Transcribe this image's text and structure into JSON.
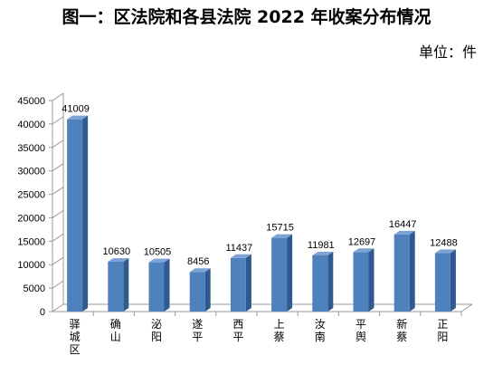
{
  "chart_data": {
    "type": "bar",
    "title": "图一：区法院和各县法院 2022 年收案分布情况",
    "unit_label": "单位：件",
    "categories": [
      "驿城区",
      "确山",
      "泌阳",
      "遂平",
      "西平",
      "上蔡",
      "汝南",
      "平舆",
      "新蔡",
      "正阳"
    ],
    "values": [
      41009,
      10630,
      10505,
      8456,
      11437,
      15715,
      11981,
      12697,
      16447,
      12488
    ],
    "data_labels": [
      "41009",
      "10630",
      "10505",
      "8456",
      "11437",
      "15715",
      "11981",
      "12697",
      "16447",
      "12488"
    ],
    "yticks": [
      "0",
      "5000",
      "10000",
      "15000",
      "20000",
      "25000",
      "30000",
      "35000",
      "40000",
      "45000"
    ],
    "ylim": [
      0,
      45000
    ],
    "xlabel": "",
    "ylabel": "",
    "grid": false,
    "legend": "none",
    "colors": {
      "bar_front": "#4f81bd",
      "bar_side": "#2f5a8f",
      "bar_top": "#7ea2d3",
      "axis": "#9a9a9a"
    }
  }
}
